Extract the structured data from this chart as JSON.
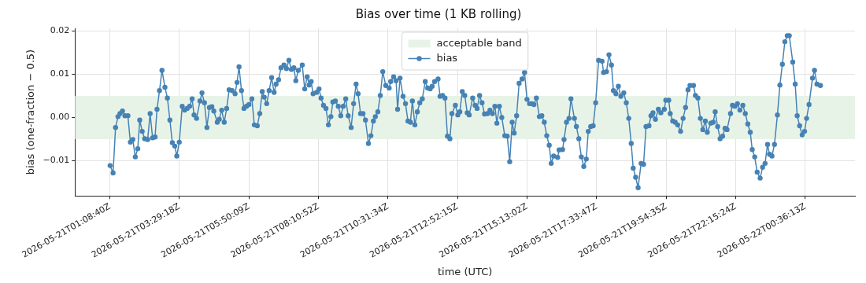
{
  "chart_data": {
    "type": "line",
    "title": "Bias over time (1 KB rolling)",
    "xlabel": "time (UTC)",
    "ylabel": "bias (one-fraction − 0.5)",
    "xlim": [
      "2026-05-20T23:58",
      "2026-05-22T02:17"
    ],
    "xticks": [
      {
        "value": "2026-05-21T01:08:40",
        "label": "2026-05-21T01:08:40Z"
      },
      {
        "value": "2026-05-21T03:29:18",
        "label": "2026-05-21T03:29:18Z"
      },
      {
        "value": "2026-05-21T05:50:09",
        "label": "2026-05-21T05:50:09Z"
      },
      {
        "value": "2026-05-21T08:10:52",
        "label": "2026-05-21T08:10:52Z"
      },
      {
        "value": "2026-05-21T10:31:34",
        "label": "2026-05-21T10:31:34Z"
      },
      {
        "value": "2026-05-21T12:52:15",
        "label": "2026-05-21T12:52:15Z"
      },
      {
        "value": "2026-05-21T15:13:02",
        "label": "2026-05-21T15:13:02Z"
      },
      {
        "value": "2026-05-21T17:33:47",
        "label": "2026-05-21T17:33:47Z"
      },
      {
        "value": "2026-05-21T19:54:35",
        "label": "2026-05-21T19:54:35Z"
      },
      {
        "value": "2026-05-21T22:15:24",
        "label": "2026-05-21T22:15:24Z"
      },
      {
        "value": "2026-05-22T00:36:13",
        "label": "2026-05-22T00:36:13Z"
      }
    ],
    "ylim": [
      -0.0181,
      0.0206
    ],
    "yticks": [
      {
        "value": -0.01,
        "label": "−0.01"
      },
      {
        "value": 0,
        "label": "0.00"
      },
      {
        "value": 0.01,
        "label": "0.01"
      },
      {
        "value": 0.02,
        "label": "0.02"
      }
    ],
    "bands": [
      {
        "axis": "y",
        "from": -0.005,
        "to": 0.005,
        "label": "acceptable band",
        "color": "#e8f3e8"
      }
    ],
    "grid": true,
    "legend": "top",
    "marker": "circle",
    "line_style": "solid",
    "x": [
      "2026-05-21T01:09",
      "2026-05-21T01:15",
      "2026-05-21T01:20",
      "2026-05-21T01:25",
      "2026-05-21T01:29",
      "2026-05-21T01:34",
      "2026-05-21T01:39",
      "2026-05-21T01:45",
      "2026-05-21T01:50",
      "2026-05-21T01:55",
      "2026-05-21T02:00",
      "2026-05-21T02:05",
      "2026-05-21T02:09",
      "2026-05-21T02:14",
      "2026-05-21T02:19",
      "2026-05-21T02:25",
      "2026-05-21T02:30",
      "2026-05-21T02:35",
      "2026-05-21T02:40",
      "2026-05-21T02:44",
      "2026-05-21T02:49",
      "2026-05-21T02:54",
      "2026-05-21T03:00",
      "2026-05-21T03:05",
      "2026-05-21T03:10",
      "2026-05-21T03:15",
      "2026-05-21T03:20",
      "2026-05-21T03:24",
      "2026-05-21T03:29",
      "2026-05-21T03:35",
      "2026-05-21T03:40",
      "2026-05-21T03:45",
      "2026-05-21T03:50",
      "2026-05-21T03:55",
      "2026-05-21T03:59",
      "2026-05-21T04:04",
      "2026-05-21T04:11",
      "2026-05-21T04:15",
      "2026-05-21T04:20",
      "2026-05-21T04:25",
      "2026-05-21T04:30",
      "2026-05-21T04:35",
      "2026-05-21T04:39",
      "2026-05-21T04:46",
      "2026-05-21T04:50",
      "2026-05-21T04:55",
      "2026-05-21T05:00",
      "2026-05-21T05:05",
      "2026-05-21T05:10",
      "2026-05-21T05:16",
      "2026-05-21T05:22",
      "2026-05-21T05:26",
      "2026-05-21T05:30",
      "2026-05-21T05:35",
      "2026-05-21T05:40",
      "2026-05-21T05:45",
      "2026-05-21T05:50",
      "2026-05-21T05:56",
      "2026-05-21T06:01",
      "2026-05-21T06:07",
      "2026-05-21T06:12",
      "2026-05-21T06:17",
      "2026-05-21T06:21",
      "2026-05-21T06:26",
      "2026-05-21T06:31",
      "2026-05-21T06:36",
      "2026-05-21T06:41",
      "2026-05-21T06:45",
      "2026-05-21T06:50",
      "2026-05-21T06:55",
      "2026-05-21T07:01",
      "2026-05-21T07:06",
      "2026-05-21T07:11",
      "2026-05-21T07:16",
      "2026-05-21T07:21",
      "2026-05-21T07:25",
      "2026-05-21T07:30",
      "2026-05-21T07:38",
      "2026-05-21T07:43",
      "2026-05-21T07:48",
      "2026-05-21T07:52",
      "2026-05-21T07:56",
      "2026-05-21T08:00",
      "2026-05-21T08:07",
      "2026-05-21T08:12",
      "2026-05-21T08:16",
      "2026-05-21T08:21",
      "2026-05-21T08:26",
      "2026-05-21T08:31",
      "2026-05-21T08:36",
      "2026-05-21T08:40",
      "2026-05-21T08:45",
      "2026-05-21T08:51",
      "2026-05-21T08:56",
      "2026-05-21T09:01",
      "2026-05-21T09:06",
      "2026-05-21T09:11",
      "2026-05-21T09:17",
      "2026-05-21T09:22",
      "2026-05-21T09:27",
      "2026-05-21T09:31",
      "2026-05-21T09:36",
      "2026-05-21T09:41",
      "2026-05-21T09:46",
      "2026-05-21T09:52",
      "2026-05-21T09:57",
      "2026-05-21T10:02",
      "2026-05-21T10:06",
      "2026-05-21T10:11",
      "2026-05-21T10:16",
      "2026-05-21T10:21",
      "2026-05-21T10:27",
      "2026-05-21T10:34",
      "2026-05-21T10:37",
      "2026-05-21T10:43",
      "2026-05-21T10:48",
      "2026-05-21T10:51",
      "2026-05-21T10:56",
      "2026-05-21T11:02",
      "2026-05-21T11:07",
      "2026-05-21T11:12",
      "2026-05-21T11:17",
      "2026-05-21T11:21",
      "2026-05-21T11:26",
      "2026-05-21T11:31",
      "2026-05-21T11:36",
      "2026-05-21T11:41",
      "2026-05-21T11:47",
      "2026-05-21T11:52",
      "2026-05-21T11:57",
      "2026-05-21T12:01",
      "2026-05-21T12:06",
      "2026-05-21T12:13",
      "2026-05-21T12:17",
      "2026-05-21T12:22",
      "2026-05-21T12:27",
      "2026-05-21T12:32",
      "2026-05-21T12:37",
      "2026-05-21T12:41",
      "2026-05-21T12:48",
      "2026-05-21T12:53",
      "2026-05-21T12:57",
      "2026-05-21T13:02",
      "2026-05-21T13:07",
      "2026-05-21T13:12",
      "2026-05-21T13:16",
      "2026-05-21T13:23",
      "2026-05-21T13:28",
      "2026-05-21T13:32",
      "2026-05-21T13:37",
      "2026-05-21T13:42",
      "2026-05-21T13:47",
      "2026-05-21T13:53",
      "2026-05-21T13:58",
      "2026-05-21T14:03",
      "2026-05-21T14:08",
      "2026-05-21T14:12",
      "2026-05-21T14:17",
      "2026-05-21T14:22",
      "2026-05-21T14:28",
      "2026-05-21T14:33",
      "2026-05-21T14:38",
      "2026-05-21T14:43",
      "2026-05-21T14:47",
      "2026-05-21T14:52",
      "2026-05-21T14:57",
      "2026-05-21T15:03",
      "2026-05-21T15:08",
      "2026-05-21T15:13",
      "2026-05-21T15:18",
      "2026-05-21T15:23",
      "2026-05-21T15:27",
      "2026-05-21T15:32",
      "2026-05-21T15:38",
      "2026-05-21T15:43",
      "2026-05-21T15:48",
      "2026-05-21T15:53",
      "2026-05-21T15:58",
      "2026-05-21T16:02",
      "2026-05-21T16:07",
      "2026-05-21T16:15",
      "2026-05-21T16:18",
      "2026-05-21T16:25",
      "2026-05-21T16:28",
      "2026-05-21T16:33",
      "2026-05-21T16:38",
      "2026-05-21T16:42",
      "2026-05-21T16:49",
      "2026-05-21T16:53",
      "2026-05-21T16:58",
      "2026-05-21T17:03",
      "2026-05-21T17:08",
      "2026-05-21T17:13",
      "2026-05-21T17:17",
      "2026-05-21T17:22",
      "2026-05-21T17:27",
      "2026-05-21T17:32",
      "2026-05-21T17:38",
      "2026-05-21T17:45",
      "2026-05-21T17:48",
      "2026-05-21T17:54",
      "2026-05-21T17:59",
      "2026-05-21T18:04",
      "2026-05-21T18:08",
      "2026-05-21T18:13",
      "2026-05-21T18:18",
      "2026-05-21T18:23",
      "2026-05-21T18:29",
      "2026-05-21T18:34",
      "2026-05-21T18:39",
      "2026-05-21T18:44",
      "2026-05-21T18:48",
      "2026-05-21T18:53",
      "2026-05-21T18:58",
      "2026-05-21T19:04",
      "2026-05-21T19:09",
      "2026-05-21T19:14",
      "2026-05-21T19:20",
      "2026-05-21T19:24",
      "2026-05-21T19:28",
      "2026-05-21T19:33",
      "2026-05-21T19:39",
      "2026-05-21T19:44",
      "2026-05-21T19:51",
      "2026-05-21T19:54",
      "2026-05-21T20:00",
      "2026-05-21T20:03",
      "2026-05-21T20:08",
      "2026-05-21T20:13",
      "2026-05-21T20:18",
      "2026-05-21T20:24",
      "2026-05-21T20:29",
      "2026-05-21T20:34",
      "2026-05-21T20:39",
      "2026-05-21T20:43",
      "2026-05-21T20:50",
      "2026-05-21T20:54",
      "2026-05-21T20:59",
      "2026-05-21T21:04",
      "2026-05-21T21:09",
      "2026-05-21T21:14",
      "2026-05-21T21:18",
      "2026-05-21T21:25",
      "2026-05-21T21:30",
      "2026-05-21T21:34",
      "2026-05-21T21:39",
      "2026-05-21T21:44",
      "2026-05-21T21:49",
      "2026-05-21T21:54",
      "2026-05-21T21:58",
      "2026-05-21T22:05",
      "2026-05-21T22:09",
      "2026-05-21T22:14",
      "2026-05-21T22:19",
      "2026-05-21T22:24",
      "2026-05-21T22:30",
      "2026-05-21T22:35",
      "2026-05-21T22:40",
      "2026-05-21T22:45",
      "2026-05-21T22:49",
      "2026-05-21T22:54",
      "2026-05-21T22:59",
      "2026-05-21T23:05",
      "2026-05-21T23:10",
      "2026-05-21T23:15",
      "2026-05-21T23:20",
      "2026-05-21T23:24",
      "2026-05-21T23:29",
      "2026-05-21T23:34",
      "2026-05-21T23:40",
      "2026-05-21T23:45",
      "2026-05-21T23:50",
      "2026-05-21T23:55",
      "2026-05-22T00:00",
      "2026-05-22T00:04",
      "2026-05-22T00:11",
      "2026-05-22T00:16",
      "2026-05-22T00:20",
      "2026-05-22T00:25",
      "2026-05-22T00:30",
      "2026-05-22T00:35",
      "2026-05-22T00:39",
      "2026-05-22T00:44",
      "2026-05-22T00:51",
      "2026-05-22T00:55",
      "2026-05-22T01:00",
      "2026-05-22T01:07"
    ],
    "series": [
      {
        "name": "bias",
        "color": "#4682b4",
        "values": [
          -0.0111,
          -0.0128,
          -0.0023,
          0.0002,
          0.0009,
          0.0015,
          0.0004,
          0.0004,
          -0.0057,
          -0.0051,
          -0.0091,
          -0.0072,
          -0.0006,
          -0.0032,
          -0.0049,
          -0.0051,
          0.0009,
          -0.0047,
          -0.0045,
          0.0019,
          0.0062,
          0.0109,
          0.007,
          0.0045,
          -0.0006,
          -0.0058,
          -0.0066,
          -0.0089,
          -0.0057,
          0.0026,
          0.0017,
          0.0021,
          0.0026,
          0.0043,
          0.0006,
          -0.0002,
          0.0038,
          0.0057,
          0.0034,
          -0.0023,
          0.0023,
          0.0025,
          0.0015,
          -0.0011,
          -0.0004,
          0.0017,
          -0.0011,
          0.0021,
          0.0064,
          0.0062,
          0.0055,
          0.0081,
          0.0117,
          0.0062,
          0.0021,
          0.0026,
          0.003,
          0.0043,
          -0.0017,
          -0.0019,
          0.0009,
          0.006,
          0.0047,
          0.0032,
          0.0062,
          0.0092,
          0.0058,
          0.0077,
          0.0087,
          0.0115,
          0.0121,
          0.0113,
          0.0132,
          0.0111,
          0.0115,
          0.0085,
          0.0109,
          0.0121,
          0.0066,
          0.0094,
          0.0075,
          0.0083,
          0.0055,
          0.0058,
          0.0066,
          0.0045,
          0.0028,
          0.0021,
          -0.0017,
          0.0002,
          0.0036,
          0.0038,
          0.0026,
          0.0004,
          0.0026,
          0.0043,
          0.0004,
          -0.0023,
          0.0032,
          0.0077,
          0.0055,
          0.0009,
          0.0009,
          -0.0006,
          -0.006,
          -0.0042,
          -0.0008,
          0.0002,
          0.0013,
          0.0051,
          0.0106,
          0.0074,
          0.0068,
          0.0083,
          0.0094,
          0.0085,
          0.0019,
          0.0091,
          0.0049,
          0.0032,
          -0.0008,
          -0.0011,
          0.0038,
          -0.0017,
          0.0013,
          0.0034,
          0.0043,
          0.0083,
          0.0068,
          0.0066,
          0.0072,
          0.0083,
          0.0089,
          0.0049,
          0.0051,
          0.0045,
          -0.0043,
          -0.0049,
          0.0009,
          0.0028,
          0.0006,
          0.0013,
          0.006,
          0.0051,
          0.0011,
          0.0006,
          0.0045,
          0.0028,
          0.0021,
          0.0051,
          0.0034,
          0.0008,
          0.0009,
          0.0017,
          0.0009,
          0.0026,
          -0.0013,
          0.0026,
          0.0,
          -0.0042,
          -0.0043,
          -0.0102,
          -0.0011,
          -0.0036,
          0.0004,
          0.0079,
          0.0089,
          0.0104,
          0.0042,
          0.0032,
          0.0032,
          0.003,
          0.0045,
          0.0002,
          0.0004,
          -0.0011,
          -0.0042,
          -0.0064,
          -0.0106,
          -0.0089,
          -0.0092,
          -0.0075,
          -0.0074,
          -0.0051,
          -0.0011,
          -0.0002,
          0.0043,
          -0.0002,
          -0.0021,
          -0.0049,
          -0.0091,
          -0.0113,
          -0.0096,
          -0.0032,
          -0.0021,
          -0.0019,
          0.0034,
          0.0132,
          0.013,
          0.0104,
          0.0106,
          0.0145,
          0.0121,
          0.0062,
          0.0055,
          0.0072,
          0.0049,
          0.0057,
          0.0034,
          -0.0002,
          -0.006,
          -0.0117,
          -0.0138,
          -0.0162,
          -0.0106,
          -0.0108,
          -0.0021,
          -0.0019,
          0.0004,
          0.0011,
          -0.0004,
          0.0019,
          0.0011,
          0.0019,
          0.004,
          0.004,
          0.0009,
          -0.0008,
          -0.0011,
          -0.0017,
          -0.0032,
          -0.0002,
          0.0023,
          0.0064,
          0.0074,
          0.0074,
          0.0051,
          0.0045,
          -0.0002,
          -0.0028,
          -0.0008,
          -0.0034,
          -0.0013,
          -0.0011,
          0.0013,
          -0.0021,
          -0.0049,
          -0.0043,
          -0.0025,
          -0.0028,
          0.0009,
          0.0028,
          0.0026,
          0.0032,
          0.0017,
          0.0028,
          0.0009,
          -0.0015,
          -0.0034,
          -0.0074,
          -0.0091,
          -0.0126,
          -0.014,
          -0.0115,
          -0.0106,
          -0.0062,
          -0.0085,
          -0.0089,
          -0.0062,
          0.0006,
          0.0075,
          0.0123,
          0.0175,
          0.0189,
          0.0189,
          0.0128,
          0.0077,
          0.0004,
          -0.0019,
          -0.004,
          -0.0032,
          -0.0002,
          0.003,
          0.0091,
          0.0109,
          0.0077,
          0.0074
        ]
      }
    ]
  }
}
